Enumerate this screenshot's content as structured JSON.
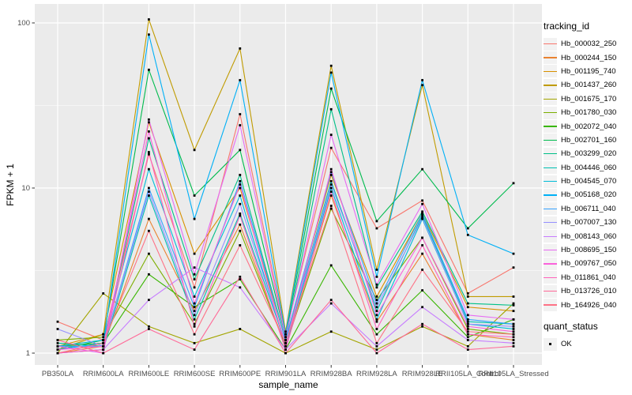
{
  "figure": {
    "x_axis_title": "sample_name",
    "y_axis_title": "FPKM + 1",
    "tracking_legend_title": "tracking_id",
    "quant_legend_title": "quant_status",
    "quant_ok_label": "OK"
  },
  "style": {
    "panel_bg": "#EBEBEB",
    "grid_color": "#FFFFFF",
    "tick_color": "#333333",
    "tick_label_color": "#4D4D4D",
    "point_color": "#000000",
    "legend_key_bg": "#F2F2F2"
  },
  "chart_data": {
    "type": "line",
    "x_type": "categorical",
    "title": "",
    "xlabel": "sample_name",
    "ylabel": "FPKM + 1",
    "y_scale": "log10",
    "ylim": [
      0.85,
      130
    ],
    "y_ticks": [
      1,
      10,
      100
    ],
    "y_tick_labels": [
      "1",
      "10",
      "100"
    ],
    "y_minor_ticks": [
      3.1623,
      31.623
    ],
    "grid": true,
    "legend_position": "right",
    "point_marker": "black-square",
    "categories": [
      "PB350LA",
      "RRIM600LA",
      "RRIM600LE",
      "RRIM600SE",
      "RRIM600PE",
      "RRIM901LA",
      "RRIM928BA",
      "RRIM928LA",
      "RRIM928LE",
      "RRII105LA_Control",
      "RRII105LA_Stressed"
    ],
    "series": [
      {
        "name": "Hb_000032_250",
        "color": "#F8766D",
        "values": [
          1.55,
          1.2,
          16,
          2.5,
          28,
          1.3,
          17.5,
          5.7,
          8.4,
          2.3,
          3.3
        ]
      },
      {
        "name": "Hb_000244_150",
        "color": "#EA8331",
        "values": [
          1.0,
          1.1,
          6.5,
          1.8,
          6.0,
          1.1,
          9.0,
          1.55,
          4.0,
          1.3,
          1.2
        ]
      },
      {
        "name": "Hb_001195_740",
        "color": "#D89000",
        "values": [
          1.1,
          1.3,
          25,
          4.0,
          10,
          1.2,
          12,
          2.2,
          7.0,
          1.9,
          1.8
        ]
      },
      {
        "name": "Hb_001437_260",
        "color": "#C09B00",
        "values": [
          1.05,
          1.3,
          105,
          17,
          70,
          1.35,
          55,
          3.2,
          42,
          2.2,
          2.2
        ]
      },
      {
        "name": "Hb_001675_170",
        "color": "#A3A500",
        "values": [
          1.0,
          2.3,
          1.45,
          1.15,
          1.4,
          1.0,
          1.35,
          1.05,
          1.45,
          1.1,
          2.0
        ]
      },
      {
        "name": "Hb_001780_030",
        "color": "#7CAE00",
        "values": [
          1.2,
          1.25,
          4.0,
          1.5,
          5.5,
          1.1,
          7.5,
          2.1,
          5.0,
          1.4,
          1.3
        ]
      },
      {
        "name": "Hb_002072_040",
        "color": "#39B600",
        "values": [
          1.1,
          1.15,
          3.0,
          1.9,
          2.8,
          1.05,
          3.4,
          1.3,
          2.4,
          1.25,
          1.6
        ]
      },
      {
        "name": "Hb_002701_160",
        "color": "#00BB4E",
        "values": [
          1.05,
          1.2,
          52,
          9.0,
          17,
          1.25,
          40,
          6.3,
          13,
          5.7,
          10.7
        ]
      },
      {
        "name": "Hb_003299_020",
        "color": "#00C087",
        "values": [
          1.15,
          1.1,
          20,
          2.8,
          12,
          1.2,
          30,
          2.5,
          7.2,
          2.0,
          1.95
        ]
      },
      {
        "name": "Hb_004446_060",
        "color": "#00C0B2",
        "values": [
          1.0,
          1.05,
          9.0,
          1.6,
          7.0,
          1.15,
          11,
          1.8,
          6.8,
          1.55,
          1.5
        ]
      },
      {
        "name": "Hb_004545_070",
        "color": "#00BCD8",
        "values": [
          1.1,
          1.2,
          13,
          2.2,
          9.0,
          1.1,
          10,
          1.6,
          6.5,
          1.5,
          1.4
        ]
      },
      {
        "name": "Hb_005168_020",
        "color": "#00B0F6",
        "values": [
          1.05,
          1.15,
          85,
          6.5,
          45,
          1.3,
          50,
          2.9,
          45,
          5.2,
          4.0
        ]
      },
      {
        "name": "Hb_006711_040",
        "color": "#35A2FF",
        "values": [
          1.1,
          1.1,
          10,
          1.9,
          11,
          1.2,
          12.5,
          2.0,
          7.0,
          1.6,
          1.5
        ]
      },
      {
        "name": "Hb_007007_130",
        "color": "#9590FF",
        "values": [
          1.4,
          1.1,
          9.5,
          1.7,
          8.0,
          1.15,
          10.5,
          1.9,
          6.6,
          1.5,
          1.45
        ]
      },
      {
        "name": "Hb_008143_060",
        "color": "#C77CFF",
        "values": [
          1.0,
          1.05,
          2.1,
          3.3,
          2.5,
          1.05,
          2.0,
          1.1,
          1.9,
          1.2,
          1.15
        ]
      },
      {
        "name": "Hb_008695_150",
        "color": "#E76BF3",
        "values": [
          1.1,
          1.0,
          26,
          3.0,
          24,
          1.25,
          21,
          2.6,
          8.0,
          1.7,
          1.6
        ]
      },
      {
        "name": "Hb_009767_050",
        "color": "#FA62DB",
        "values": [
          1.05,
          1.1,
          22,
          2.0,
          10.5,
          1.1,
          13,
          1.7,
          5.0,
          1.45,
          1.35
        ]
      },
      {
        "name": "Hb_011861_040",
        "color": "#FF62BC",
        "values": [
          1.0,
          1.05,
          16.5,
          1.45,
          6.8,
          1.05,
          9.5,
          1.4,
          4.5,
          1.3,
          1.25
        ]
      },
      {
        "name": "Hb_013726_010",
        "color": "#FF6A98",
        "values": [
          1.2,
          1.0,
          1.4,
          1.05,
          2.9,
          1.0,
          2.1,
          1.0,
          1.5,
          1.05,
          1.1
        ]
      },
      {
        "name": "Hb_164926_040",
        "color": "#FE7286",
        "values": [
          1.0,
          1.15,
          5.5,
          1.3,
          4.5,
          1.15,
          7.8,
          1.15,
          3.2,
          1.35,
          1.3
        ]
      }
    ]
  }
}
